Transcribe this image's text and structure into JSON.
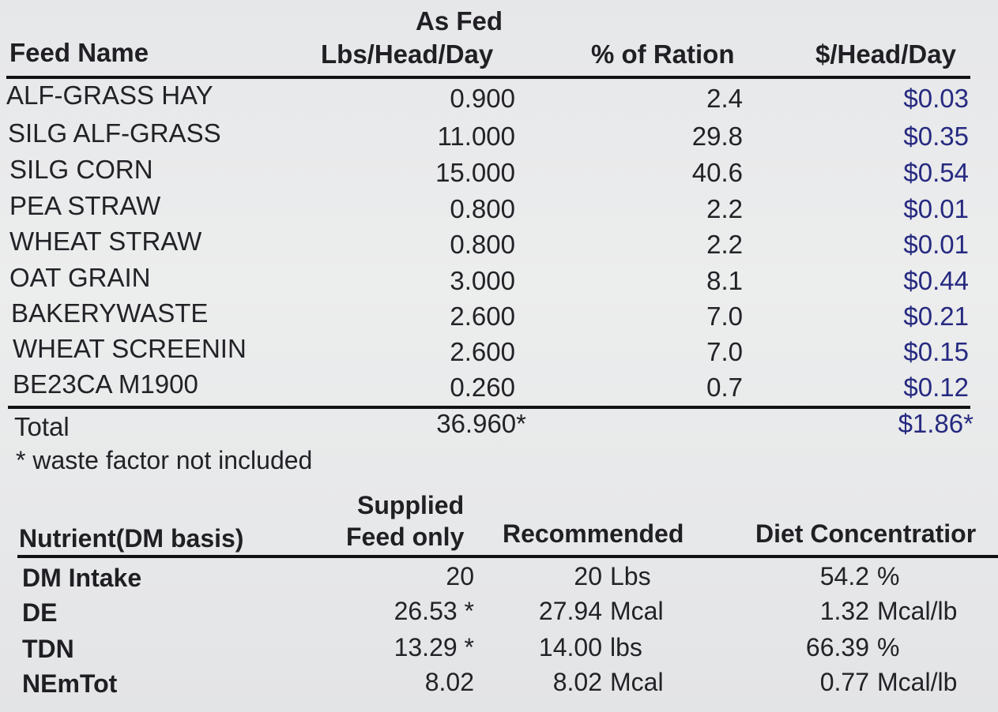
{
  "feed_table": {
    "headers": {
      "feed_name": "Feed Name",
      "as_fed_line1": "As Fed",
      "as_fed_line2": "Lbs/Head/Day",
      "pct_ration": "% of Ration",
      "cost": "$/Head/Day"
    },
    "rows": [
      {
        "name": "ALF-GRASS HAY",
        "lbs": "0.900",
        "pct": "2.4",
        "cost": "$0.03"
      },
      {
        "name": "SILG ALF-GRASS",
        "lbs": "11.000",
        "pct": "29.8",
        "cost": "$0.35"
      },
      {
        "name": "SILG CORN",
        "lbs": "15.000",
        "pct": "40.6",
        "cost": "$0.54"
      },
      {
        "name": "PEA STRAW",
        "lbs": "0.800",
        "pct": "2.2",
        "cost": "$0.01"
      },
      {
        "name": "WHEAT STRAW",
        "lbs": "0.800",
        "pct": "2.2",
        "cost": "$0.01"
      },
      {
        "name": "OAT GRAIN",
        "lbs": "3.000",
        "pct": "8.1",
        "cost": "$0.44"
      },
      {
        "name": "BAKERYWASTE",
        "lbs": "2.600",
        "pct": "7.0",
        "cost": "$0.21"
      },
      {
        "name": "WHEAT SCREENIN",
        "lbs": "2.600",
        "pct": "7.0",
        "cost": "$0.15"
      },
      {
        "name": "BE23CA M1900",
        "lbs": "0.260",
        "pct": "0.7",
        "cost": "$0.12"
      }
    ],
    "total": {
      "label": "Total",
      "lbs": "36.960*",
      "cost": "$1.86*"
    },
    "footnote": "* waste factor not included"
  },
  "nutrient_table": {
    "headers": {
      "nutrient": "Nutrient(DM basis)",
      "supplied_line1": "Supplied",
      "supplied_line2": "Feed only",
      "recommended": "Recommended",
      "diet": "Diet Concentratior"
    },
    "rows": [
      {
        "name": "DM Intake",
        "supplied": "20",
        "rec_val": "20",
        "rec_unit": "Lbs",
        "diet_val": "54.2",
        "diet_unit": "%"
      },
      {
        "name": "DE",
        "supplied": "26.53 *",
        "rec_val": "27.94",
        "rec_unit": "Mcal",
        "diet_val": "1.32",
        "diet_unit": "Mcal/lb"
      },
      {
        "name": "TDN",
        "supplied": "13.29 *",
        "rec_val": "14.00",
        "rec_unit": "lbs",
        "diet_val": "66.39",
        "diet_unit": "%"
      },
      {
        "name": "NEmTot",
        "supplied": "8.02",
        "rec_val": "8.02",
        "rec_unit": "Mcal",
        "diet_val": "0.77",
        "diet_unit": "Mcal/lb"
      }
    ]
  }
}
